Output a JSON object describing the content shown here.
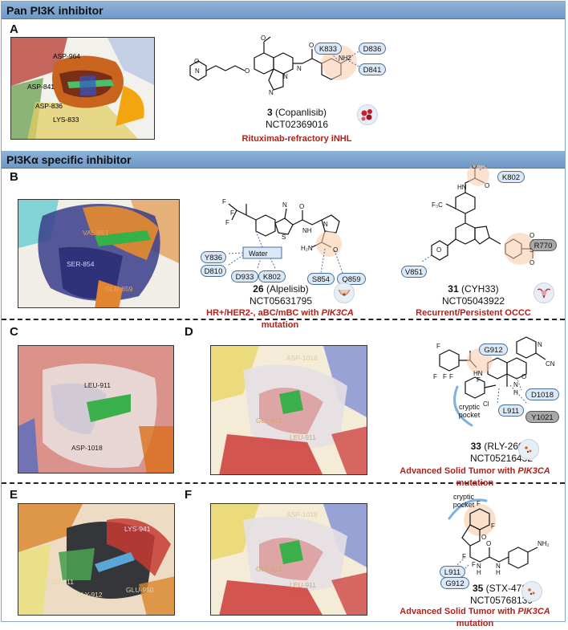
{
  "sections": {
    "pan": "Pan PI3K inhibitor",
    "alpha": "PI3Kα specific inhibitor"
  },
  "panels": {
    "A": "A",
    "B": "B",
    "C": "C",
    "D": "D",
    "E": "E",
    "F": "F"
  },
  "residues_3d": {
    "A": [
      "ASP-964",
      "ASP-841",
      "ASP-836",
      "LYS-833"
    ],
    "B": [
      "VAL-851",
      "SER-854",
      "GLN-859"
    ],
    "C": [
      "LEU-911",
      "ASP-1018"
    ],
    "D": [
      "ASP-1018",
      "GLY-912",
      "LEU-911"
    ],
    "E": [
      "LYS-941",
      "LEU-911",
      "GLY-912",
      "GLU-950"
    ],
    "F": [
      "ASP-1018",
      "GLY-912",
      "LEU-911"
    ]
  },
  "compounds": {
    "c3": {
      "number": "3",
      "name": "(Copanlisib)",
      "nct": "NCT02369016",
      "indication": "Rituximab-refractory iNHL",
      "residues": [
        "K833",
        "D836",
        "D841"
      ],
      "nh2": "NH2",
      "nh": "N H"
    },
    "c26": {
      "number": "26",
      "name": "(Alpelisib)",
      "nct": "NCT05631795",
      "indication_pre": "HR+/HER2-, aBC/mBC with ",
      "indication_gene": "PIK3CA",
      "indication_post": " mutation",
      "residues": [
        "Y836",
        "D810",
        "D933",
        "K802",
        "S854",
        "Q859"
      ],
      "water": "Water",
      "labels": [
        "F",
        "F",
        "F",
        "NH",
        "O",
        "O",
        "H₂N"
      ]
    },
    "c31": {
      "number": "31",
      "name": "(CYH33)",
      "nct": "NCT05043922",
      "indication": "Recurrent/Persistent OCCC",
      "residues": [
        "K802",
        "V851"
      ],
      "grey_residue": "R770",
      "labels": [
        "F₃C",
        "HN",
        "O",
        "O",
        "N",
        "S",
        "O",
        "O"
      ]
    },
    "c33": {
      "number": "33",
      "name": "(RLY-2608)",
      "nct": "NCT05216432",
      "indication_pre": "Advanced Solid Tumor with ",
      "indication_gene": "PIK3CA",
      "indication_post": " mutation",
      "residues": [
        "G912",
        "D1018",
        "L911"
      ],
      "grey_residue": "Y1021",
      "pocket": "cryptic pocket",
      "labels": [
        "F",
        "F",
        "F",
        "F",
        "HN",
        "Cl",
        "N",
        "O",
        "H",
        "CN"
      ]
    },
    "c35": {
      "number": "35",
      "name": "(STX-478)",
      "nct": "NCT05768139",
      "indication_pre": "Advanced Solid Tumor with ",
      "indication_gene": "PIK3CA",
      "indication_post": " mutation",
      "residues": [
        "L911",
        "G912"
      ],
      "pocket": "cryptic pocket",
      "labels": [
        "F",
        "F",
        "F",
        "F",
        "O",
        "N",
        "H",
        "N",
        "H",
        "O",
        "NH₂"
      ]
    }
  },
  "colors": {
    "header": "#7fa6cf",
    "highlight": "#f7c9a6",
    "pill": "#dbe8f5",
    "indication": "#b2201c"
  }
}
